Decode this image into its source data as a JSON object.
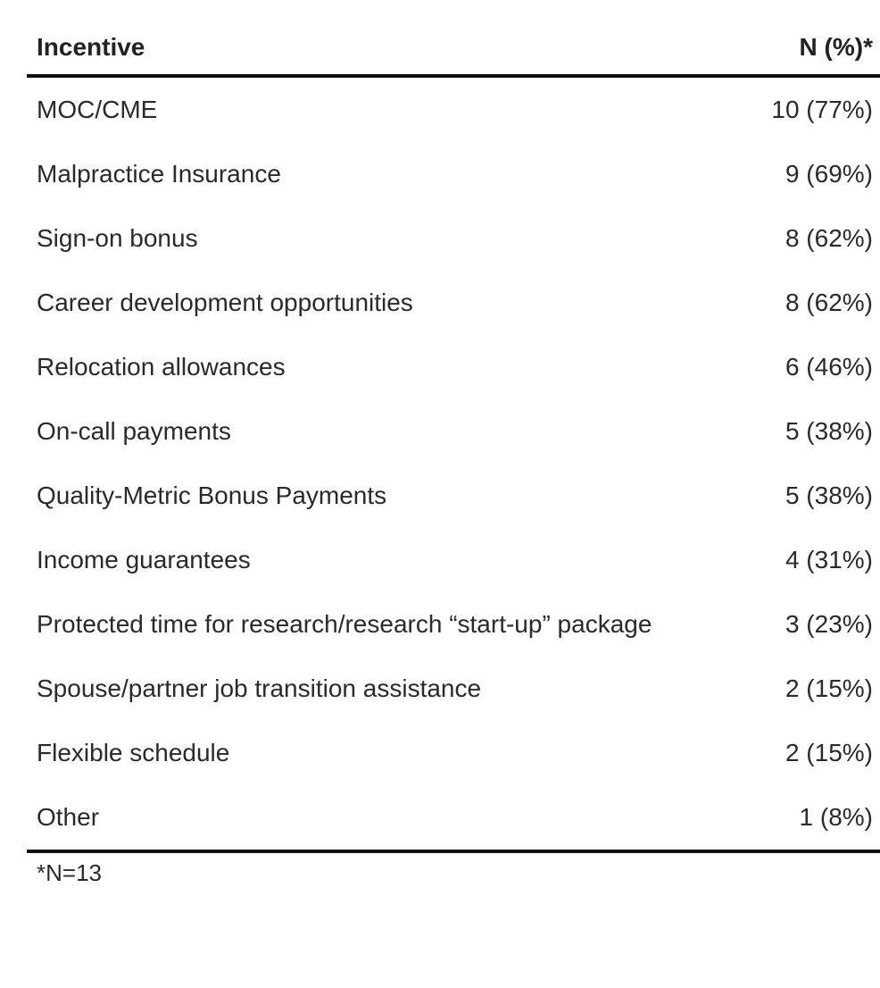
{
  "table": {
    "headers": {
      "incentive": "Incentive",
      "n": "N (%)*"
    },
    "rows": [
      {
        "incentive": "MOC/CME",
        "n": "10 (77%)"
      },
      {
        "incentive": "Malpractice Insurance",
        "n": "9 (69%)"
      },
      {
        "incentive": "Sign-on bonus",
        "n": "8 (62%)"
      },
      {
        "incentive": "Career development opportunities",
        "n": "8 (62%)"
      },
      {
        "incentive": "Relocation allowances",
        "n": "6 (46%)"
      },
      {
        "incentive": "On-call payments",
        "n": "5 (38%)"
      },
      {
        "incentive": "Quality-Metric Bonus Payments",
        "n": "5 (38%)"
      },
      {
        "incentive": "Income guarantees",
        "n": "4 (31%)"
      },
      {
        "incentive": "Protected time for research/research “start-up” package",
        "n": "3 (23%)"
      },
      {
        "incentive": "Spouse/partner job transition assistance",
        "n": "2 (15%)"
      },
      {
        "incentive": "Flexible schedule",
        "n": "2 (15%)"
      },
      {
        "incentive": "Other",
        "n": "1 (8%)"
      }
    ],
    "footnote": "*N=13"
  }
}
